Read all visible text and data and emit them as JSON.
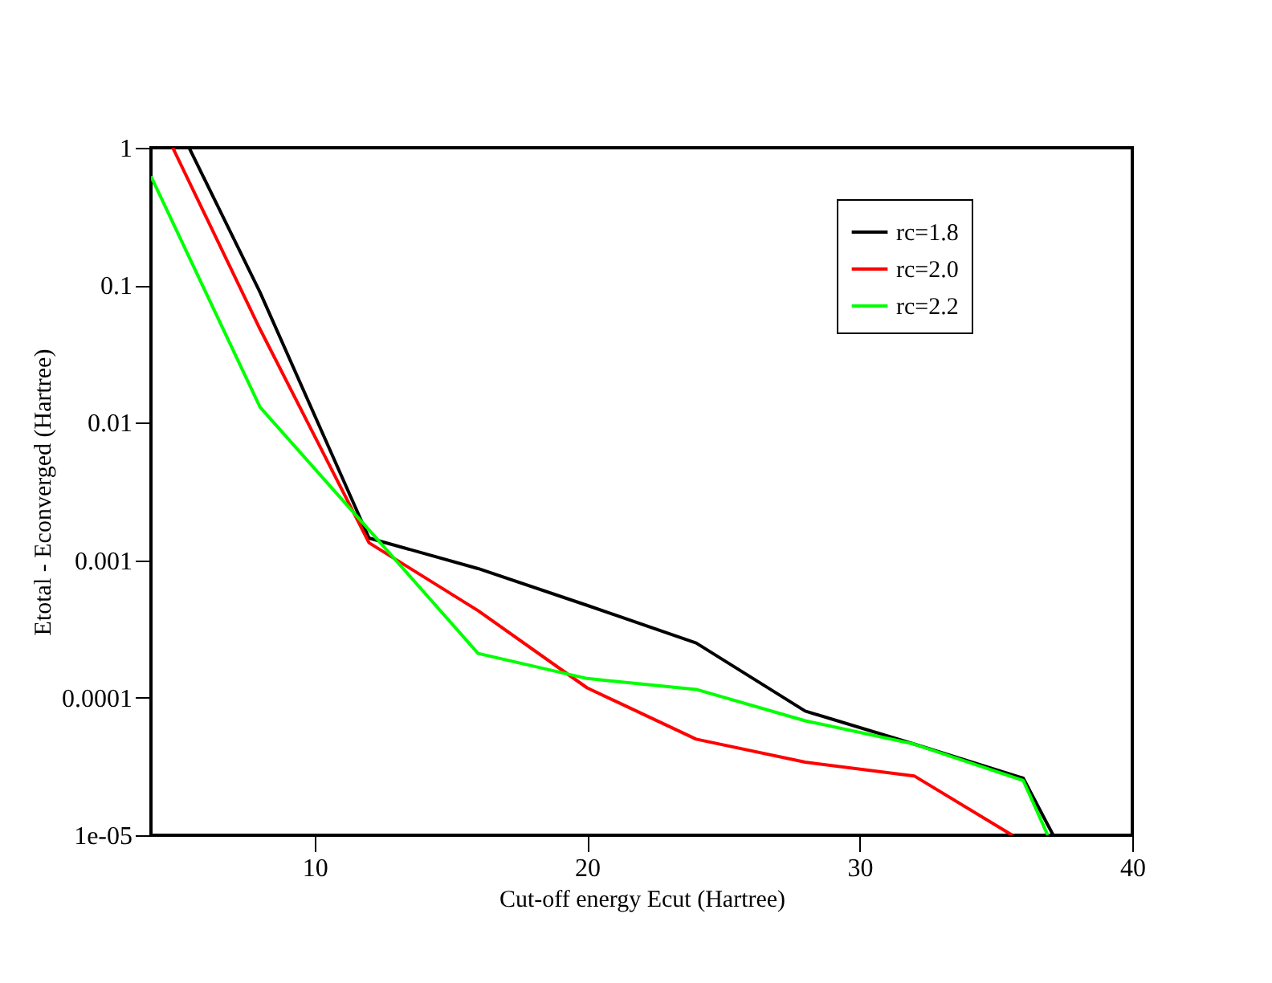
{
  "chart_data": {
    "type": "line",
    "xlabel": "Cut-off energy Ecut (Hartree)",
    "ylabel": "Etotal - Econverged (Hartree)",
    "xlim": [
      4,
      40
    ],
    "xticks": [
      10,
      20,
      30,
      40
    ],
    "ylim": [
      1e-05,
      1
    ],
    "yticks": [
      {
        "value": 1e-05,
        "label": "1e-05"
      },
      0.0001,
      0.001,
      0.01,
      0.1,
      1
    ],
    "log": "y",
    "grid": false,
    "legend": "top right",
    "marker": "none",
    "line_style": "solid",
    "series": [
      {
        "name": "rc=1.8",
        "color": "#000000",
        "x": [
          5.4,
          8,
          12,
          16,
          20,
          24,
          28,
          32,
          36,
          37.1
        ],
        "values": [
          1,
          0.089,
          0.00145,
          0.00087,
          0.00047,
          0.00025,
          8e-05,
          4.6e-05,
          2.6e-05,
          1e-05
        ]
      },
      {
        "name": "rc=2.0",
        "color": "#ff0000",
        "x": [
          4.8,
          8,
          12,
          16,
          20,
          24,
          28,
          32,
          35.6
        ],
        "values": [
          1,
          0.048,
          0.00134,
          0.00043,
          0.000118,
          5e-05,
          3.4e-05,
          2.7e-05,
          1e-05
        ]
      },
      {
        "name": "rc=2.2",
        "color": "#00ff00",
        "x": [
          4,
          8,
          12,
          16,
          20,
          24,
          28,
          32,
          36,
          36.9
        ],
        "values": [
          0.62,
          0.013,
          0.00166,
          0.00021,
          0.000138,
          0.000115,
          6.8e-05,
          4.6e-05,
          2.5e-05,
          1e-05
        ]
      }
    ]
  }
}
